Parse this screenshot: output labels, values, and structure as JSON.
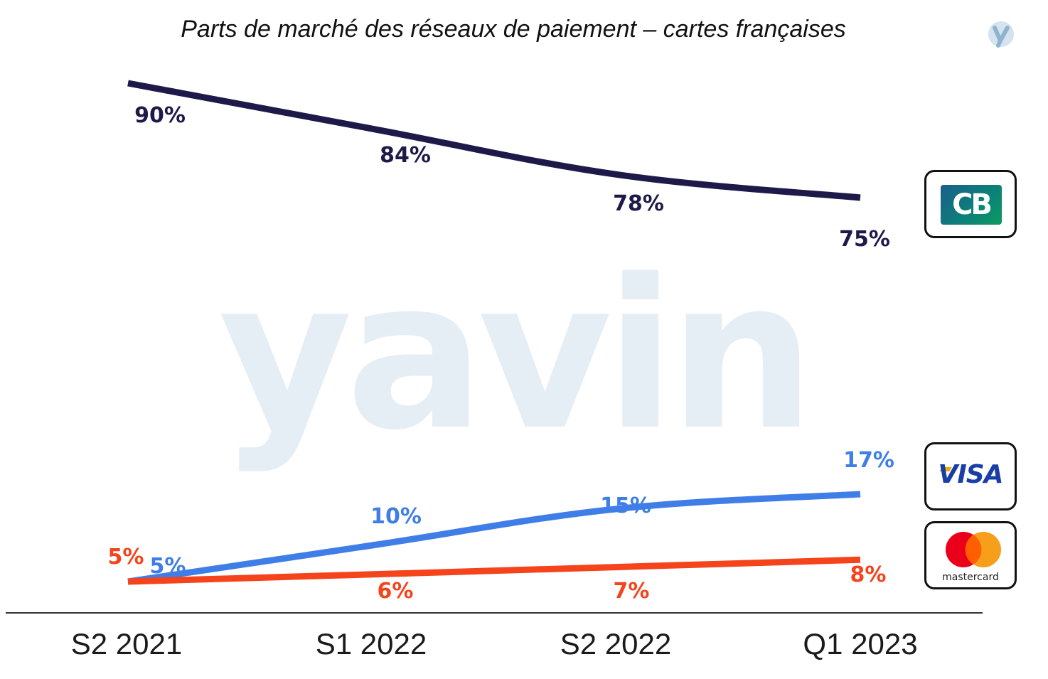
{
  "title": "Parts de marché des réseaux de paiement – cartes françaises",
  "watermark": "yavin",
  "logos": {
    "cb": "CB",
    "visa": "VISA",
    "mastercard": "mastercard"
  },
  "colors": {
    "cb": "#1d1a4a",
    "visa": "#3f7ee6",
    "mastercard": "#f5431c",
    "watermark": "#e6eef5"
  },
  "chart_data": {
    "type": "line",
    "categories": [
      "S2 2021",
      "S1 2022",
      "S2 2022",
      "Q1 2023"
    ],
    "series": [
      {
        "name": "CB",
        "values": [
          90,
          84,
          78,
          75
        ],
        "labels": [
          "90%",
          "84%",
          "78%",
          "75%"
        ]
      },
      {
        "name": "Visa",
        "values": [
          5,
          10,
          15,
          17
        ],
        "labels": [
          "5%",
          "10%",
          "15%",
          "17%"
        ]
      },
      {
        "name": "Mastercard",
        "values": [
          5,
          6,
          7,
          8
        ],
        "labels": [
          "5%",
          "6%",
          "7%",
          "8%"
        ]
      }
    ],
    "grid": false
  }
}
